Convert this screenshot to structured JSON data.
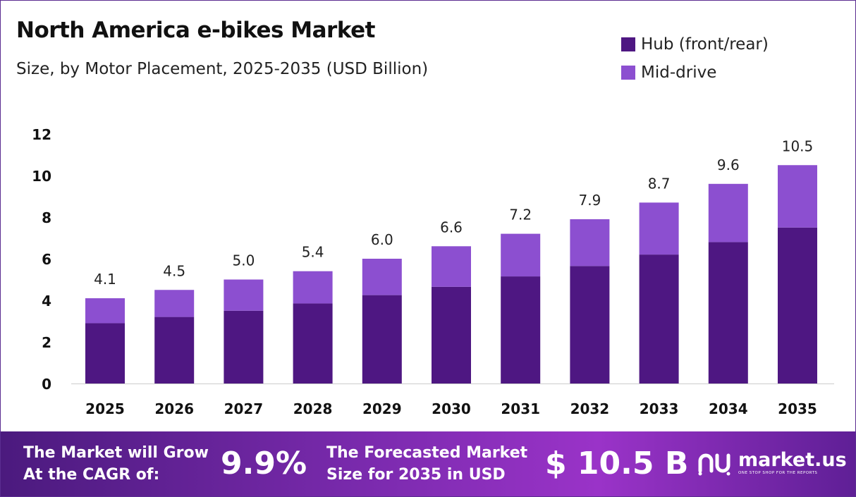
{
  "title": "North America e-bikes Market",
  "subtitle": "Size, by Motor Placement, 2025-2035 (USD Billion)",
  "legend": [
    {
      "name": "Hub (front/rear)",
      "color": "#4e1782"
    },
    {
      "name": "Mid-drive",
      "color": "#8c4fd0"
    }
  ],
  "chart_data": {
    "type": "bar",
    "stacked": true,
    "categories": [
      "2025",
      "2026",
      "2027",
      "2028",
      "2029",
      "2030",
      "2031",
      "2032",
      "2033",
      "2034",
      "2035"
    ],
    "series": [
      {
        "name": "Hub (front/rear)",
        "color": "#4e1782",
        "values": [
          2.9,
          3.2,
          3.5,
          3.85,
          4.25,
          4.65,
          5.15,
          5.65,
          6.2,
          6.8,
          7.5
        ]
      },
      {
        "name": "Mid-drive",
        "color": "#8c4fd0",
        "values": [
          1.2,
          1.3,
          1.5,
          1.55,
          1.75,
          1.95,
          2.05,
          2.25,
          2.5,
          2.8,
          3.0
        ]
      }
    ],
    "totals": [
      "4.1",
      "4.5",
      "5.0",
      "5.4",
      "6.0",
      "6.6",
      "7.2",
      "7.9",
      "8.7",
      "9.6",
      "10.5"
    ],
    "y_ticks": [
      "0",
      "2",
      "4",
      "6",
      "8",
      "10",
      "12"
    ],
    "ylim": [
      0,
      12
    ],
    "grid": false,
    "legend_position": "top-right"
  },
  "banner": {
    "cagr_label_line1": "The Market will Grow",
    "cagr_label_line2": "At the CAGR of:",
    "cagr_value": "9.9%",
    "forecast_label_line1": "The Forecasted Market",
    "forecast_label_line2": "Size for 2035 in USD",
    "forecast_value": "$ 10.5 B",
    "logo_name": "market.us",
    "logo_tagline": "ONE STOP SHOP FOR THE REPORTS"
  }
}
